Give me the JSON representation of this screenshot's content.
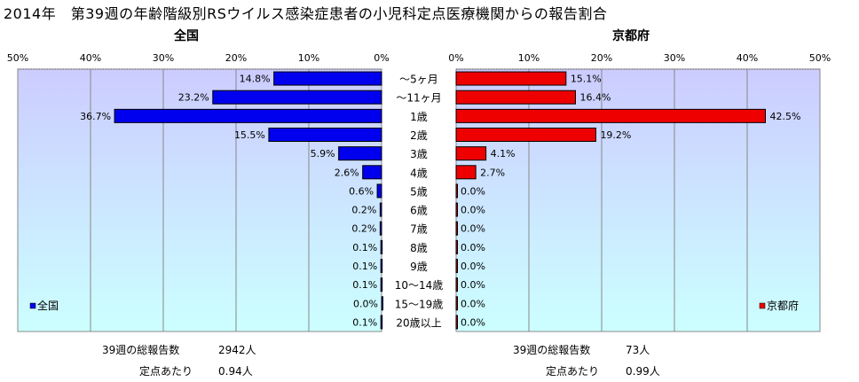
{
  "title": "2014年　第39週の年齢階級別RSウイルス感染症患者の小児科定点医療機関からの報告割合",
  "categories": [
    "～5ヶ月",
    "～11ヶ月",
    "1歳",
    "2歳",
    "3歳",
    "4歳",
    "5歳",
    "6歳",
    "7歳",
    "8歳",
    "9歳",
    "10～14歳",
    "15～19歳",
    "20歳以上"
  ],
  "chart_data": [
    {
      "type": "bar",
      "orientation": "horizontal",
      "title": "全国",
      "categories": [
        "～5ヶ月",
        "～11ヶ月",
        "1歳",
        "2歳",
        "3歳",
        "4歳",
        "5歳",
        "6歳",
        "7歳",
        "8歳",
        "9歳",
        "10～14歳",
        "15～19歳",
        "20歳以上"
      ],
      "series": [
        {
          "name": "全国",
          "values": [
            14.8,
            23.2,
            36.7,
            15.5,
            5.9,
            2.6,
            0.6,
            0.2,
            0.2,
            0.1,
            0.1,
            0.1,
            0.0,
            0.1
          ]
        }
      ],
      "data_labels": [
        "14.8%",
        "23.2%",
        "36.7%",
        "15.5%",
        "5.9%",
        "2.6%",
        "0.6%",
        "0.2%",
        "0.2%",
        "0.1%",
        "0.1%",
        "0.1%",
        "0.0%",
        "0.1%"
      ],
      "xlim": [
        0,
        50
      ],
      "x_reversed": true,
      "tick_labels": [
        "50%",
        "40%",
        "30%",
        "20%",
        "10%",
        "0%"
      ],
      "legend_position": "bottom-left",
      "grid": true,
      "color": "#0000ee"
    },
    {
      "type": "bar",
      "orientation": "horizontal",
      "title": "京都府",
      "categories": [
        "～5ヶ月",
        "～11ヶ月",
        "1歳",
        "2歳",
        "3歳",
        "4歳",
        "5歳",
        "6歳",
        "7歳",
        "8歳",
        "9歳",
        "10～14歳",
        "15～19歳",
        "20歳以上"
      ],
      "series": [
        {
          "name": "京都府",
          "values": [
            15.1,
            16.4,
            42.5,
            19.2,
            4.1,
            2.7,
            0.0,
            0.0,
            0.0,
            0.0,
            0.0,
            0.0,
            0.0,
            0.0
          ]
        }
      ],
      "data_labels": [
        "15.1%",
        "16.4%",
        "42.5%",
        "19.2%",
        "4.1%",
        "2.7%",
        "0.0%",
        "0.0%",
        "0.0%",
        "0.0%",
        "0.0%",
        "0.0%",
        "0.0%",
        "0.0%"
      ],
      "xlim": [
        0,
        50
      ],
      "tick_labels": [
        "0%",
        "10%",
        "20%",
        "30%",
        "40%",
        "50%"
      ],
      "legend_position": "bottom-right",
      "grid": true,
      "color": "#ee0000"
    }
  ],
  "footer": {
    "left": {
      "total_label": "39週の総報告数",
      "total_value": "2942人",
      "per_label": "定点あたり",
      "per_value": "0.94人"
    },
    "right": {
      "total_label": "39週の総報告数",
      "total_value": "73人",
      "per_label": "定点あたり",
      "per_value": "0.99人"
    }
  },
  "colors": {
    "bg_top": "#ccccff",
    "bg_bottom": "#ccffff",
    "grid": "#888888",
    "left_bar": "#0000ee",
    "right_bar": "#ee0000"
  }
}
